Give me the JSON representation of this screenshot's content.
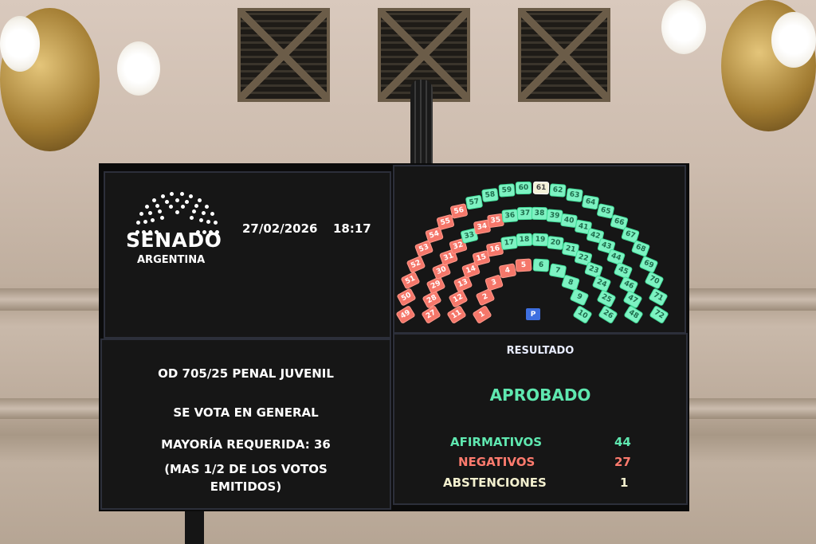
{
  "header": {
    "logo_text": "SENADO",
    "logo_subtext": "ARGENTINA",
    "date": "27/02/2026",
    "time": "18:17"
  },
  "motion": {
    "title": "OD 705/25 PENAL JUVENIL",
    "vote_type": "SE VOTA EN GENERAL",
    "majority": "MAYORÍA REQUERIDA: 36",
    "majority_note_line1": "(MAS 1/2 DE LOS VOTOS",
    "majority_note_line2": "EMITIDOS)"
  },
  "result": {
    "heading": "RESULTADO",
    "outcome": "APROBADO",
    "affirmative_label": "AFIRMATIVOS",
    "affirmative_count": "44",
    "negative_label": "NEGATIVOS",
    "negative_count": "27",
    "abstention_label": "ABSTENCIONES",
    "abstention_count": "1"
  },
  "seat_chart": {
    "rows": [
      [
        1,
        10
      ],
      [
        11,
        26
      ],
      [
        27,
        48
      ],
      [
        49,
        72
      ]
    ],
    "negative_seats": [
      1,
      2,
      3,
      4,
      5,
      11,
      12,
      13,
      14,
      15,
      16,
      27,
      28,
      29,
      30,
      31,
      32,
      34,
      35,
      49,
      50,
      51,
      52,
      53,
      54,
      55,
      56
    ],
    "abstention_seats": [
      61
    ],
    "president_label": "P"
  },
  "colors": {
    "affirmative": "#7df2c2",
    "negative": "#f5776a",
    "abstention": "#f4f2d8",
    "president": "#3e6fe0",
    "affirmative_text": "#5fe8b0",
    "negative_text": "#ff7b6e",
    "abstention_text": "#f3f0cf",
    "heading_text": "#e8ecff"
  }
}
